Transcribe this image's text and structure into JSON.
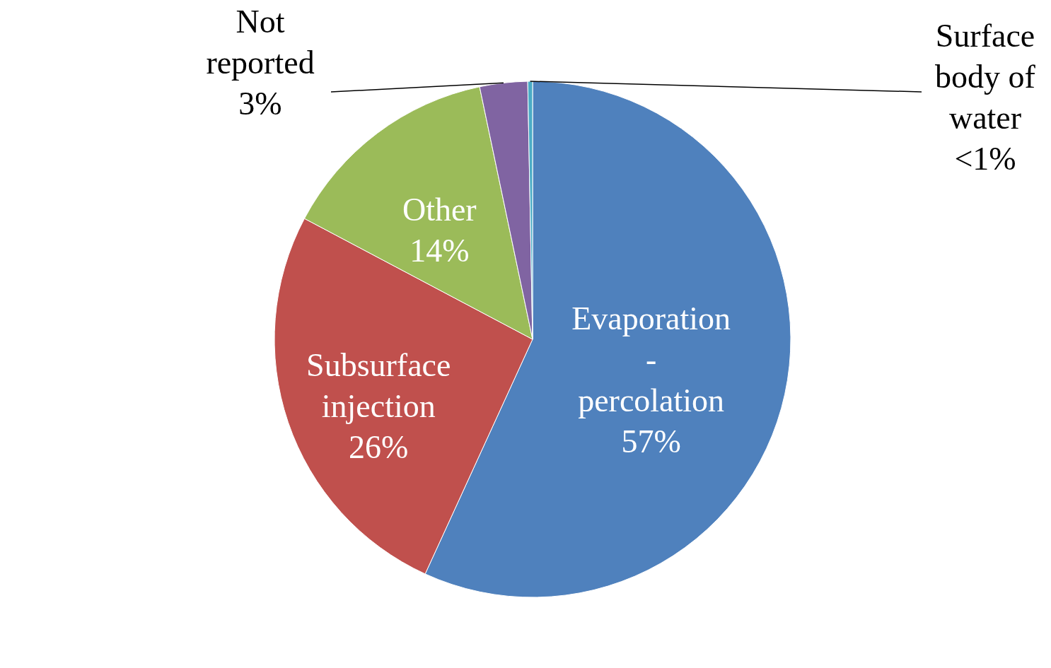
{
  "chart_data": {
    "type": "pie",
    "categories": [
      "Evaporation\n-\npercolation",
      "Subsurface\ninjection",
      "Other",
      "Not\nreported",
      "Surface\nbody of\nwater"
    ],
    "values": [
      57,
      26,
      14,
      3,
      0.3
    ],
    "value_labels": [
      "57%",
      "26%",
      "14%",
      "3%",
      "<1%"
    ],
    "colors": [
      "#4f81bd",
      "#c0504d",
      "#9bbb59",
      "#8064a2",
      "#4bacc6"
    ]
  }
}
